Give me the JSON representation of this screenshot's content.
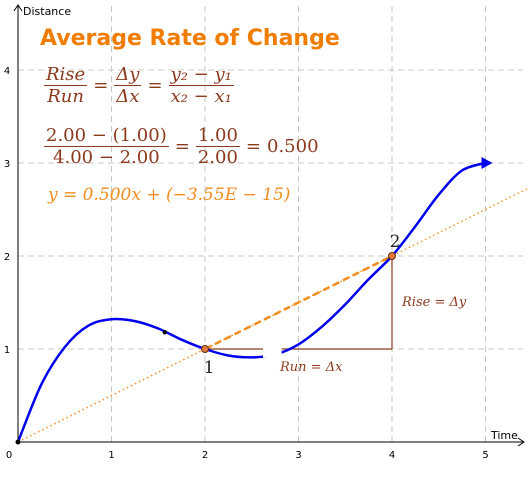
{
  "title": "Average Rate of Change",
  "formula": {
    "rise": "Rise",
    "run": "Run",
    "delta_y": "Δy",
    "delta_x": "Δx",
    "y_diff": "y₂ − y₁",
    "x_diff": "x₂ − x₁",
    "num_values": "2.00 − (1.00)",
    "den_values": "4.00 − 2.00",
    "num_result": "1.00",
    "den_result": "2.00",
    "slope": "0.500",
    "line_equation": "y = 0.500x + (−3.55E − 15)"
  },
  "colors": {
    "curve": "#0000ee",
    "secant": "#f28c1c",
    "triangle": "#8b3a1e",
    "title": "#f07c00"
  },
  "chart_data": {
    "type": "line",
    "xlabel": "Time",
    "ylabel": "Distance",
    "xlim": [
      0,
      5
    ],
    "ylim": [
      0,
      4
    ],
    "x_ticks": [
      "0",
      "1",
      "2",
      "3",
      "4",
      "5"
    ],
    "y_ticks": [
      "1",
      "2",
      "3",
      "4"
    ],
    "grid": true,
    "curve": {
      "points": [
        [
          0,
          0
        ],
        [
          0.25,
          0.62
        ],
        [
          0.5,
          1.02
        ],
        [
          0.75,
          1.25
        ],
        [
          1,
          1.32
        ],
        [
          1.25,
          1.3
        ],
        [
          1.5,
          1.22
        ],
        [
          1.75,
          1.1
        ],
        [
          2,
          1.0
        ],
        [
          2.25,
          0.93
        ],
        [
          2.5,
          0.91
        ],
        [
          2.75,
          0.94
        ],
        [
          3,
          1.05
        ],
        [
          3.25,
          1.24
        ],
        [
          3.5,
          1.48
        ],
        [
          3.75,
          1.75
        ],
        [
          4,
          2.0
        ],
        [
          4.25,
          2.32
        ],
        [
          4.5,
          2.66
        ],
        [
          4.75,
          2.92
        ],
        [
          5,
          3.0
        ]
      ],
      "gap_x": [
        2.62,
        2.82
      ]
    },
    "curve_point": {
      "x": 1.57,
      "y": 1.18
    },
    "points": [
      {
        "label": "1",
        "x": 2,
        "y": 1
      },
      {
        "label": "2",
        "x": 4,
        "y": 2
      }
    ],
    "secant_line": {
      "slope": 0.5,
      "intercept": 0,
      "x_range": [
        0,
        5.7
      ]
    },
    "rise_label": "Rise = Δy",
    "run_label": "Run = Δx"
  }
}
